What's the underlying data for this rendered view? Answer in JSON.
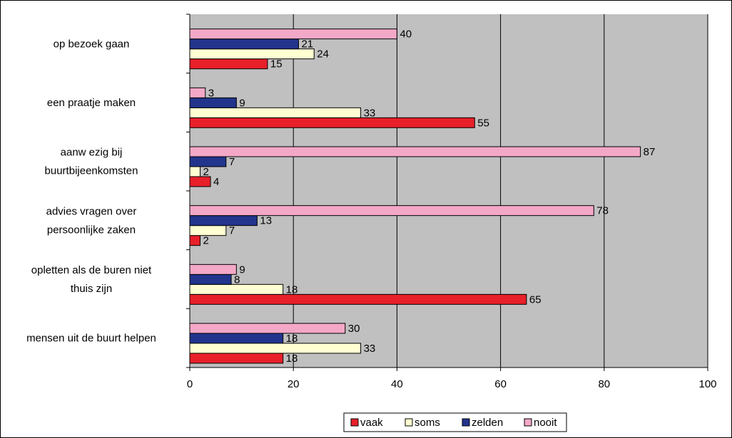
{
  "chart_data": {
    "type": "bar",
    "orientation": "horizontal",
    "categories": [
      [
        "op bezoek gaan"
      ],
      [
        "een praatje maken"
      ],
      [
        "aanw ezig bij",
        "buurtbijeenkomsten"
      ],
      [
        "advies vragen over",
        "persoonlijke zaken"
      ],
      [
        "opletten als de buren niet",
        "thuis zijn"
      ],
      [
        "mensen uit de buurt helpen"
      ]
    ],
    "series": [
      {
        "name": "vaak",
        "color": "#e8202a",
        "values": [
          15,
          55,
          4,
          2,
          65,
          18
        ]
      },
      {
        "name": "soms",
        "color": "#ffffd2",
        "values": [
          24,
          33,
          2,
          7,
          18,
          33
        ]
      },
      {
        "name": "zelden",
        "color": "#22348c",
        "values": [
          21,
          9,
          7,
          13,
          8,
          18
        ]
      },
      {
        "name": "nooit",
        "color": "#f4a8c8",
        "values": [
          40,
          3,
          87,
          78,
          9,
          30
        ]
      }
    ],
    "xlim": [
      0,
      100
    ],
    "xticks": [
      "0",
      "20",
      "40",
      "60",
      "80",
      "100"
    ],
    "grid": "vertical",
    "plot_background": "#c0c0c0",
    "legend_position": "bottom"
  }
}
